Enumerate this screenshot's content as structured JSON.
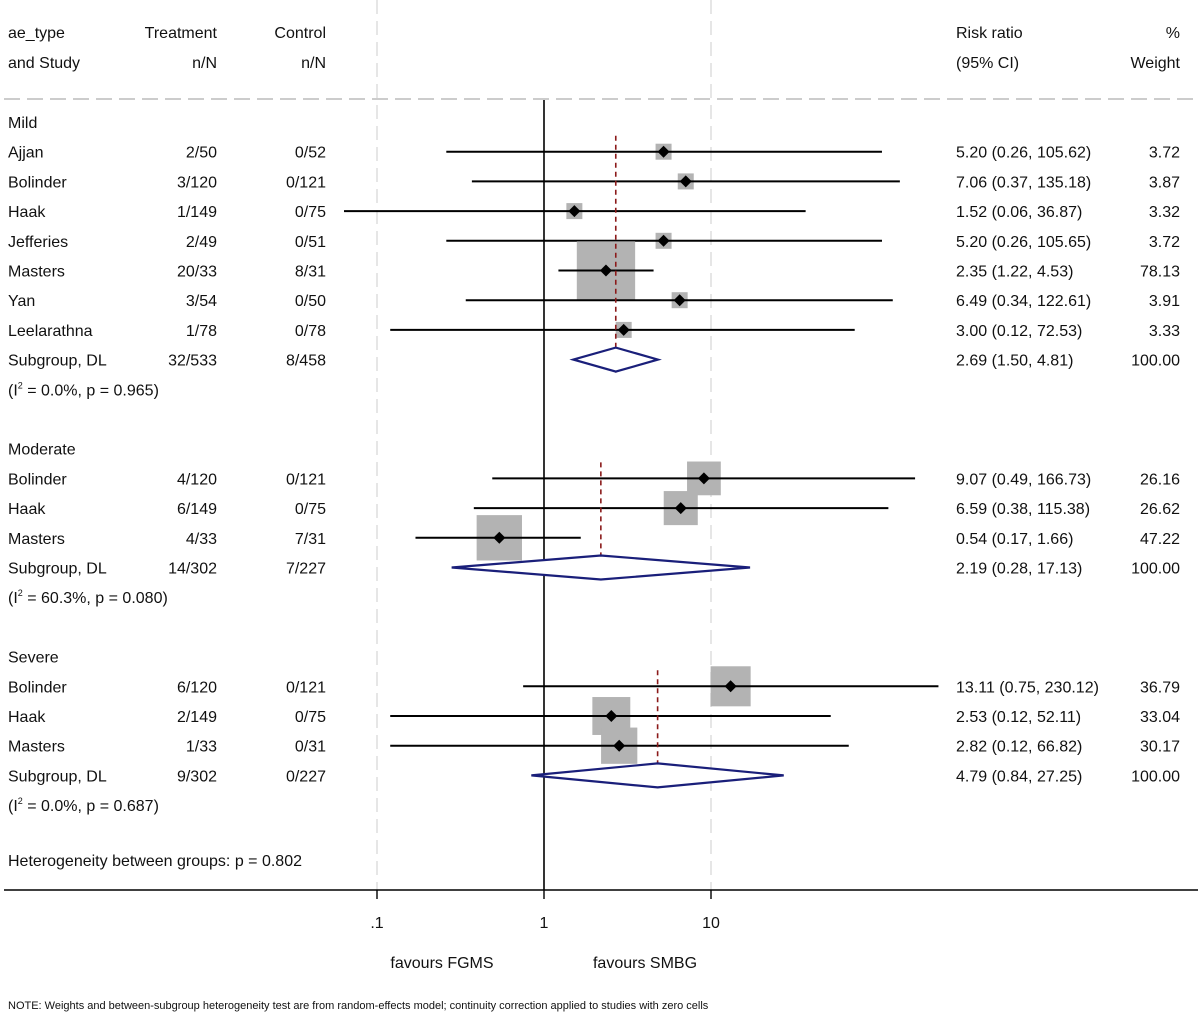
{
  "chart_data": {
    "type": "forest",
    "scale": "log",
    "null_value": 1,
    "headers": {
      "study": [
        "ae_type",
        "and Study"
      ],
      "treatment": [
        "Treatment",
        "n/N"
      ],
      "control": [
        "Control",
        "n/N"
      ],
      "effect": [
        "Risk ratio",
        "(95% CI)"
      ],
      "weight": [
        "%",
        "Weight"
      ]
    },
    "x_ticks": [
      {
        "value": 0.1,
        "label": ".1"
      },
      {
        "value": 1,
        "label": "1"
      },
      {
        "value": 10,
        "label": "10"
      }
    ],
    "x_range": [
      0.0536,
      35.0
    ],
    "favours_left": "favours FGMS",
    "favours_right": "favours SMBG",
    "groups": [
      {
        "name": "Mild",
        "pooled_rr": 2.69,
        "studies": [
          {
            "study": "Ajjan",
            "treatment": "2/50",
            "control": "0/52",
            "rr": 5.2,
            "lo": 0.26,
            "hi": 105.62,
            "ci_text": "5.20 (0.26, 105.62)",
            "weight": 3.72,
            "weight_text": "3.72"
          },
          {
            "study": "Bolinder",
            "treatment": "3/120",
            "control": "0/121",
            "rr": 7.06,
            "lo": 0.37,
            "hi": 135.18,
            "ci_text": "7.06 (0.37, 135.18)",
            "weight": 3.87,
            "weight_text": "3.87"
          },
          {
            "study": "Haak",
            "treatment": "1/149",
            "control": "0/75",
            "rr": 1.52,
            "lo": 0.06,
            "hi": 36.87,
            "ci_text": "1.52 (0.06, 36.87)",
            "weight": 3.32,
            "weight_text": "3.32"
          },
          {
            "study": "Jefferies",
            "treatment": "2/49",
            "control": "0/51",
            "rr": 5.2,
            "lo": 0.26,
            "hi": 105.65,
            "ci_text": "5.20 (0.26, 105.65)",
            "weight": 3.72,
            "weight_text": "3.72"
          },
          {
            "study": "Masters",
            "treatment": "20/33",
            "control": "8/31",
            "rr": 2.35,
            "lo": 1.22,
            "hi": 4.53,
            "ci_text": "2.35 (1.22, 4.53)",
            "weight": 78.13,
            "weight_text": "78.13"
          },
          {
            "study": "Yan",
            "treatment": "3/54",
            "control": "0/50",
            "rr": 6.49,
            "lo": 0.34,
            "hi": 122.61,
            "ci_text": "6.49 (0.34, 122.61)",
            "weight": 3.91,
            "weight_text": "3.91"
          },
          {
            "study": "Leelarathna",
            "treatment": "1/78",
            "control": "0/78",
            "rr": 3.0,
            "lo": 0.12,
            "hi": 72.53,
            "ci_text": "3.00 (0.12, 72.53)",
            "weight": 3.33,
            "weight_text": "3.33"
          }
        ],
        "subgroup": {
          "label": "Subgroup, DL",
          "treatment": "32/533",
          "control": "8/458",
          "rr": 2.69,
          "lo": 1.5,
          "hi": 4.81,
          "ci_text": "2.69 (1.50, 4.81)",
          "weight_text": "100.00"
        },
        "het_prefix": "(I",
        "het_sup": "2",
        "het_rest": " = 0.0%, p = 0.965)"
      },
      {
        "name": "Moderate",
        "pooled_rr": 2.19,
        "studies": [
          {
            "study": "Bolinder",
            "treatment": "4/120",
            "control": "0/121",
            "rr": 9.07,
            "lo": 0.49,
            "hi": 166.73,
            "ci_text": "9.07 (0.49, 166.73)",
            "weight": 26.16,
            "weight_text": "26.16"
          },
          {
            "study": "Haak",
            "treatment": "6/149",
            "control": "0/75",
            "rr": 6.59,
            "lo": 0.38,
            "hi": 115.38,
            "ci_text": "6.59 (0.38, 115.38)",
            "weight": 26.62,
            "weight_text": "26.62"
          },
          {
            "study": "Masters",
            "treatment": "4/33",
            "control": "7/31",
            "rr": 0.54,
            "lo": 0.17,
            "hi": 1.66,
            "ci_text": "0.54 (0.17, 1.66)",
            "weight": 47.22,
            "weight_text": "47.22"
          }
        ],
        "subgroup": {
          "label": "Subgroup, DL",
          "treatment": "14/302",
          "control": "7/227",
          "rr": 2.19,
          "lo": 0.28,
          "hi": 17.13,
          "ci_text": "2.19 (0.28, 17.13)",
          "weight_text": "100.00"
        },
        "het_prefix": "(I",
        "het_sup": "2",
        "het_rest": " = 60.3%, p = 0.080)"
      },
      {
        "name": "Severe",
        "pooled_rr": 4.79,
        "studies": [
          {
            "study": "Bolinder",
            "treatment": "6/120",
            "control": "0/121",
            "rr": 13.11,
            "lo": 0.75,
            "hi": 230.12,
            "ci_text": "13.11 (0.75, 230.12)",
            "weight": 36.79,
            "weight_text": "36.79"
          },
          {
            "study": "Haak",
            "treatment": "2/149",
            "control": "0/75",
            "rr": 2.53,
            "lo": 0.12,
            "hi": 52.11,
            "ci_text": "2.53 (0.12, 52.11)",
            "weight": 33.04,
            "weight_text": "33.04"
          },
          {
            "study": "Masters",
            "treatment": "1/33",
            "control": "0/31",
            "rr": 2.82,
            "lo": 0.12,
            "hi": 66.82,
            "ci_text": "2.82 (0.12, 66.82)",
            "weight": 30.17,
            "weight_text": "30.17"
          }
        ],
        "subgroup": {
          "label": "Subgroup, DL",
          "treatment": "9/302",
          "control": "0/227",
          "rr": 4.79,
          "lo": 0.84,
          "hi": 27.25,
          "ci_text": "4.79 (0.84, 27.25)",
          "weight_text": "100.00"
        },
        "het_prefix": "(I",
        "het_sup": "2",
        "het_rest": " = 0.0%, p = 0.687)"
      }
    ],
    "between_groups": "Heterogeneity between groups: p = 0.802",
    "note": "NOTE: Weights and between-subgroup heterogeneity test are from random-effects model; continuity correction applied to studies with zero cells",
    "colors": {
      "ci_line": "#000000",
      "box": "#b3b3b3",
      "point": "#000000",
      "diamond": "#1a1f7a",
      "pooled_line": "#8b1a1a",
      "grid": "#dddddd",
      "axis": "#000000"
    }
  }
}
